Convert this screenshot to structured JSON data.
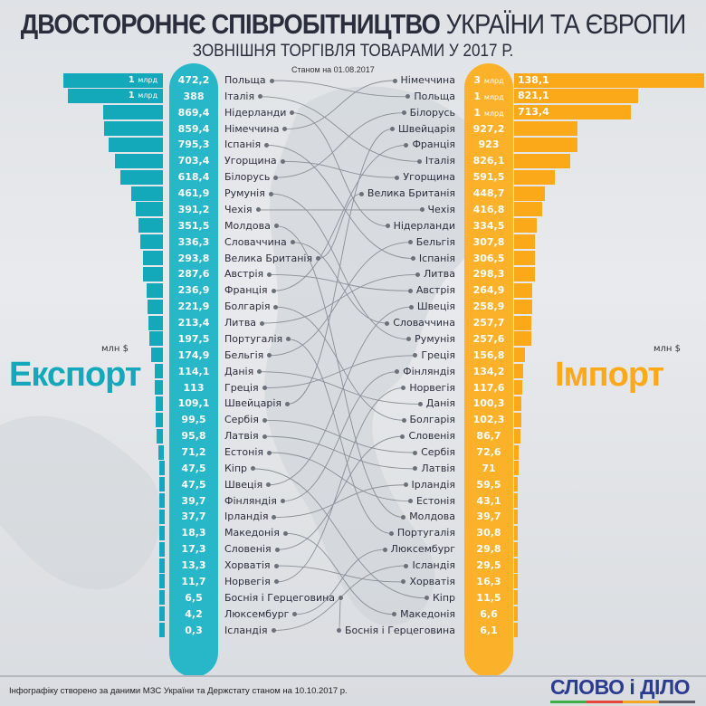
{
  "header": {
    "title_bold": "ДВОСТОРОННЄ СПІВРОБІТНИЦТВО",
    "title_rest": "УКРАЇНИ ТА ЄВРОПИ",
    "subtitle": "ЗОВНІШНЯ ТОРГІВЛЯ ТОВАРАМИ У 2017 Р.",
    "as_of": "Станом на 01.08.2017"
  },
  "footer": {
    "source": "Інфографіку створено за даними МЗС України та Держстату станом на  10.10.2017 р.",
    "logo": "СЛОВО і ДІЛО"
  },
  "colors": {
    "export": "#13a9ba",
    "import": "#fba918"
  },
  "chart_data": {
    "type": "bar",
    "title": "Двостороннє співробітництво України та Європи — зовнішня торгівля товарами у 2017 р.",
    "unit": "млн $",
    "bn_label": "млрд",
    "export": {
      "label": "Експорт",
      "unit": "млн $",
      "rows": [
        {
          "country": "Польща",
          "value": 1472.2,
          "bn": "1",
          "rest": "472,2"
        },
        {
          "country": "Італія",
          "value": 1388,
          "bn": "1",
          "rest": "388"
        },
        {
          "country": "Нідерланди",
          "value": 869.4,
          "rest": "869,4"
        },
        {
          "country": "Німеччина",
          "value": 859.4,
          "rest": "859,4"
        },
        {
          "country": "Іспанія",
          "value": 795.3,
          "rest": "795,3"
        },
        {
          "country": "Угорщина",
          "value": 703.4,
          "rest": "703,4"
        },
        {
          "country": "Білорусь",
          "value": 618.4,
          "rest": "618,4"
        },
        {
          "country": "Румунія",
          "value": 461.9,
          "rest": "461,9"
        },
        {
          "country": "Чехія",
          "value": 391.2,
          "rest": "391,2"
        },
        {
          "country": "Молдова",
          "value": 351.5,
          "rest": "351,5"
        },
        {
          "country": "Словаччина",
          "value": 336.3,
          "rest": "336,3"
        },
        {
          "country": "Велика Британія",
          "value": 293.8,
          "rest": "293,8"
        },
        {
          "country": "Австрія",
          "value": 287.6,
          "rest": "287,6"
        },
        {
          "country": "Франція",
          "value": 236.9,
          "rest": "236,9"
        },
        {
          "country": "Болгарія",
          "value": 221.9,
          "rest": "221,9"
        },
        {
          "country": "Литва",
          "value": 213.4,
          "rest": "213,4"
        },
        {
          "country": "Португалія",
          "value": 197.5,
          "rest": "197,5"
        },
        {
          "country": "Бельгія",
          "value": 174.9,
          "rest": "174,9"
        },
        {
          "country": "Данія",
          "value": 114.1,
          "rest": "114,1"
        },
        {
          "country": "Греція",
          "value": 113,
          "rest": "113"
        },
        {
          "country": "Швейцарія",
          "value": 109.1,
          "rest": "109,1"
        },
        {
          "country": "Сербія",
          "value": 99.5,
          "rest": "99,5"
        },
        {
          "country": "Латвія",
          "value": 95.8,
          "rest": "95,8"
        },
        {
          "country": "Естонія",
          "value": 71.2,
          "rest": "71,2"
        },
        {
          "country": "Кіпр",
          "value": 47.5,
          "rest": "47,5"
        },
        {
          "country": "Швеція",
          "value": 47.5,
          "rest": "47,5"
        },
        {
          "country": "Фінляндія",
          "value": 39.7,
          "rest": "39,7"
        },
        {
          "country": "Ірландія",
          "value": 37.7,
          "rest": "37,7"
        },
        {
          "country": "Македонія",
          "value": 18.3,
          "rest": "18,3"
        },
        {
          "country": "Словенія",
          "value": 17.3,
          "rest": "17,3"
        },
        {
          "country": "Хорватія",
          "value": 13.3,
          "rest": "13,3"
        },
        {
          "country": "Норвегія",
          "value": 11.7,
          "rest": "11,7"
        },
        {
          "country": "Боснія і Герцеговина",
          "value": 6.5,
          "rest": "6,5"
        },
        {
          "country": "Люксембург",
          "value": 4.2,
          "rest": "4,2"
        },
        {
          "country": "Ісландія",
          "value": 0.3,
          "rest": "0,3"
        }
      ]
    },
    "import": {
      "label": "Імпорт",
      "unit": "млн $",
      "rows": [
        {
          "country": "Німеччина",
          "value": 3138.1,
          "bn": "3",
          "rest": "138,1"
        },
        {
          "country": "Польща",
          "value": 1821.1,
          "bn": "1",
          "rest": "821,1"
        },
        {
          "country": "Білорусь",
          "value": 1713.4,
          "bn": "1",
          "rest": "713,4"
        },
        {
          "country": "Швейцарія",
          "value": 927.2,
          "rest": "927,2"
        },
        {
          "country": "Франція",
          "value": 923,
          "rest": "923"
        },
        {
          "country": "Італія",
          "value": 826.1,
          "rest": "826,1"
        },
        {
          "country": "Угорщина",
          "value": 591.5,
          "rest": "591,5"
        },
        {
          "country": "Велика Британія",
          "value": 448.7,
          "rest": "448,7"
        },
        {
          "country": "Чехія",
          "value": 416.8,
          "rest": "416,8"
        },
        {
          "country": "Нідерланди",
          "value": 334.5,
          "rest": "334,5"
        },
        {
          "country": "Бельгія",
          "value": 307.8,
          "rest": "307,8"
        },
        {
          "country": "Іспанія",
          "value": 306.5,
          "rest": "306,5"
        },
        {
          "country": "Литва",
          "value": 298.3,
          "rest": "298,3"
        },
        {
          "country": "Австрія",
          "value": 264.9,
          "rest": "264,9"
        },
        {
          "country": "Швеція",
          "value": 258.9,
          "rest": "258,9"
        },
        {
          "country": "Словаччина",
          "value": 257.7,
          "rest": "257,7"
        },
        {
          "country": "Румунія",
          "value": 257.6,
          "rest": "257,6"
        },
        {
          "country": "Греція",
          "value": 156.8,
          "rest": "156,8"
        },
        {
          "country": "Фінляндія",
          "value": 134.2,
          "rest": "134,2"
        },
        {
          "country": "Норвегія",
          "value": 117.6,
          "rest": "117,6"
        },
        {
          "country": "Данія",
          "value": 100.3,
          "rest": "100,3"
        },
        {
          "country": "Болгарія",
          "value": 102.3,
          "rest": "102,3"
        },
        {
          "country": "Словенія",
          "value": 86.7,
          "rest": "86,7"
        },
        {
          "country": "Сербія",
          "value": 72.6,
          "rest": "72,6"
        },
        {
          "country": "Латвія",
          "value": 71,
          "rest": "71"
        },
        {
          "country": "Ірландія",
          "value": 59.5,
          "rest": "59,5"
        },
        {
          "country": "Естонія",
          "value": 43.1,
          "rest": "43,1"
        },
        {
          "country": "Молдова",
          "value": 39.7,
          "rest": "39,7"
        },
        {
          "country": "Португалія",
          "value": 30.8,
          "rest": "30,8"
        },
        {
          "country": "Люксембург",
          "value": 29.8,
          "rest": "29,8"
        },
        {
          "country": "Ісландія",
          "value": 29.5,
          "rest": "29,5"
        },
        {
          "country": "Хорватія",
          "value": 16.3,
          "rest": "16,3"
        },
        {
          "country": "Кіпр",
          "value": 11.5,
          "rest": "11,5"
        },
        {
          "country": "Македонія",
          "value": 6.6,
          "rest": "6,6"
        },
        {
          "country": "Боснія і Герцеговина",
          "value": 6.1,
          "rest": "6,1"
        }
      ]
    }
  }
}
